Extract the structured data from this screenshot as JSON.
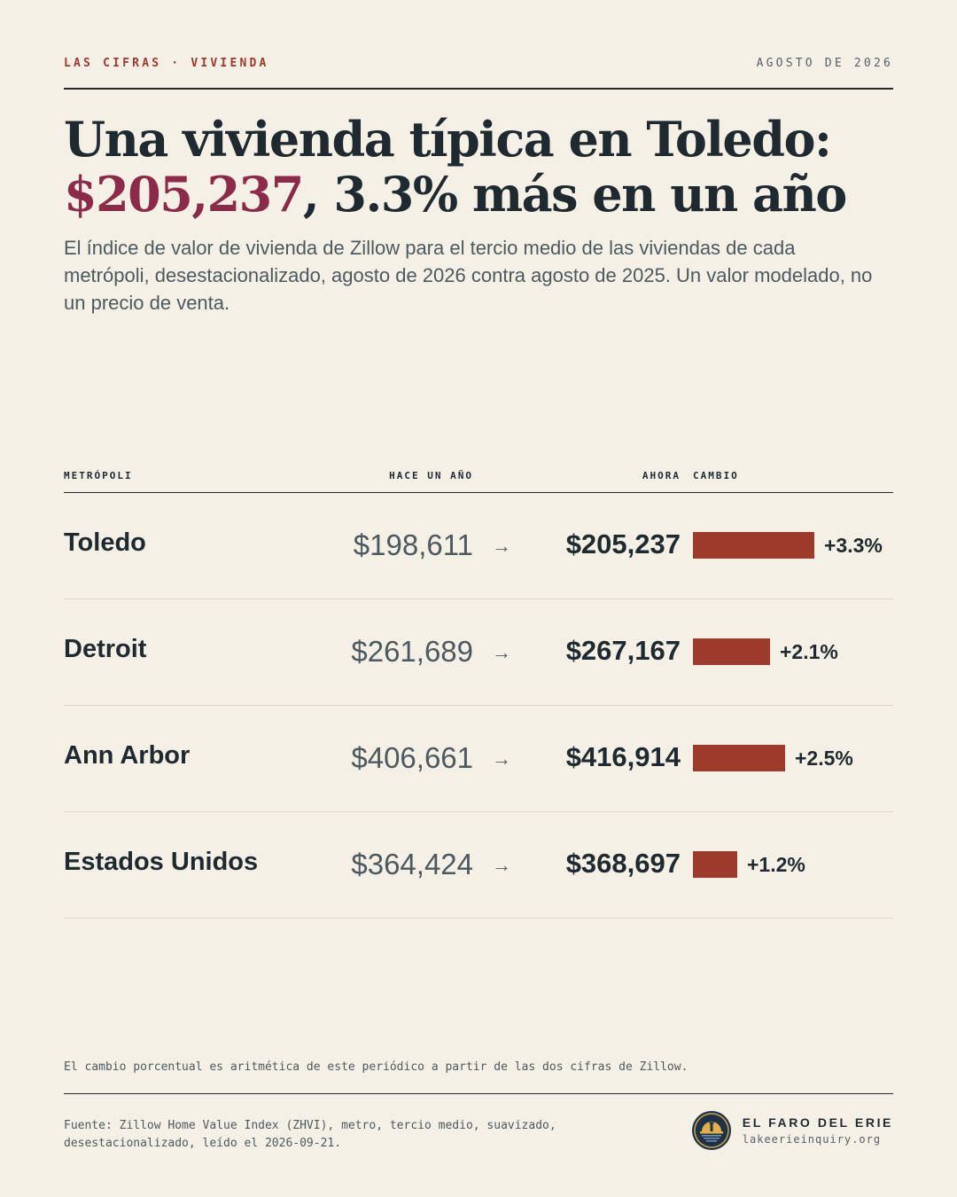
{
  "header": {
    "kicker": "LAS CIFRAS · VIVIENDA",
    "date": "AGOSTO DE 2026"
  },
  "headline": {
    "line1": "Una vivienda típica en Toledo:",
    "value": "$205,237",
    "rest": ", 3.3% más en un año"
  },
  "dek": "El índice de valor de vivienda de Zillow para el tercio medio de las viviendas de cada metrópoli, desestacionalizado, agosto de 2026 contra agosto de 2025. Un valor modelado, no un precio de venta.",
  "table": {
    "headers": {
      "metro": "METRÓPOLI",
      "year_ago": "HACE UN AÑO",
      "now": "AHORA",
      "change": "CAMBIO"
    },
    "arrow": "→",
    "rows": [
      {
        "metro": "Toledo",
        "year_ago": "$198,611",
        "now": "$205,237",
        "change": "+3.3%",
        "change_value": 3.3
      },
      {
        "metro": "Detroit",
        "year_ago": "$261,689",
        "now": "$267,167",
        "change": "+2.1%",
        "change_value": 2.1
      },
      {
        "metro": "Ann Arbor",
        "year_ago": "$406,661",
        "now": "$416,914",
        "change": "+2.5%",
        "change_value": 2.5
      },
      {
        "metro": "Estados Unidos",
        "year_ago": "$364,424",
        "now": "$368,697",
        "change": "+1.2%",
        "change_value": 1.2
      }
    ],
    "bar_color": "#9e3a2c"
  },
  "note": "El cambio porcentual es aritmética de este periódico a partir de las dos cifras de Zillow.",
  "source": "Fuente: Zillow Home Value Index (ZHVI), metro, tercio medio, suavizado, desestacionalizado, leído el 2026-09-21.",
  "brand": {
    "name": "EL FARO DEL ERIE",
    "url": "lakeerieinquiry.org",
    "logo_icon": "lighthouse-sunset-seal-icon"
  },
  "colors": {
    "background": "#f5f0e6",
    "ink": "#1e2a30",
    "accent_red": "#9e3a2c",
    "accent_wine": "#8c2a4a"
  }
}
